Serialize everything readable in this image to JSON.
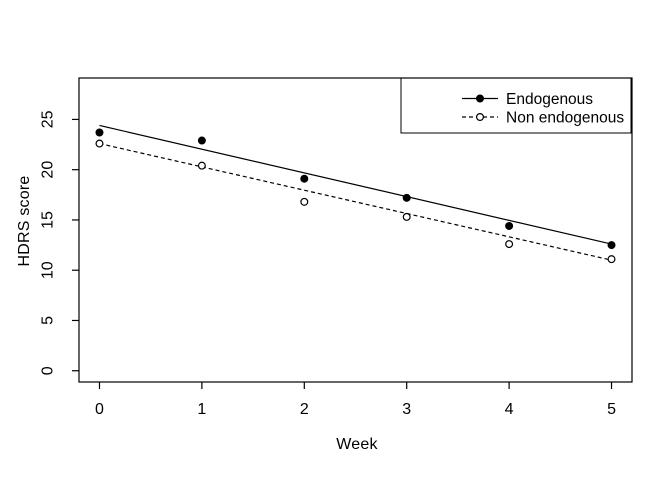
{
  "chart_data": {
    "type": "line",
    "xlabel": "Week",
    "ylabel": "HDRS score",
    "x": [
      0,
      1,
      2,
      3,
      4,
      5
    ],
    "x_ticks": [
      "0",
      "1",
      "2",
      "3",
      "4",
      "5"
    ],
    "y_ticks": [
      "0",
      "5",
      "10",
      "15",
      "20",
      "25"
    ],
    "xlim": [
      0,
      5
    ],
    "ylim": [
      0,
      28
    ],
    "grid": false,
    "background_color": "#ffffff",
    "foreground_color": "#000000",
    "legend": {
      "position": "top-right",
      "bordered": true
    },
    "series": [
      {
        "name": "Endogenous",
        "marker": "filled-circle",
        "line_style": "solid",
        "color": "#000000",
        "observed_means": [
          23.7,
          22.9,
          19.1,
          17.2,
          14.4,
          12.5
        ],
        "trend_line": {
          "x": [
            0,
            5
          ],
          "y": [
            24.4,
            12.6
          ]
        }
      },
      {
        "name": "Non endogenous",
        "marker": "open-circle",
        "line_style": "dashed",
        "color": "#000000",
        "observed_means": [
          22.6,
          20.4,
          16.8,
          15.3,
          12.6,
          11.1
        ],
        "trend_line": {
          "x": [
            0,
            5
          ],
          "y": [
            22.6,
            11.0
          ]
        }
      }
    ]
  }
}
